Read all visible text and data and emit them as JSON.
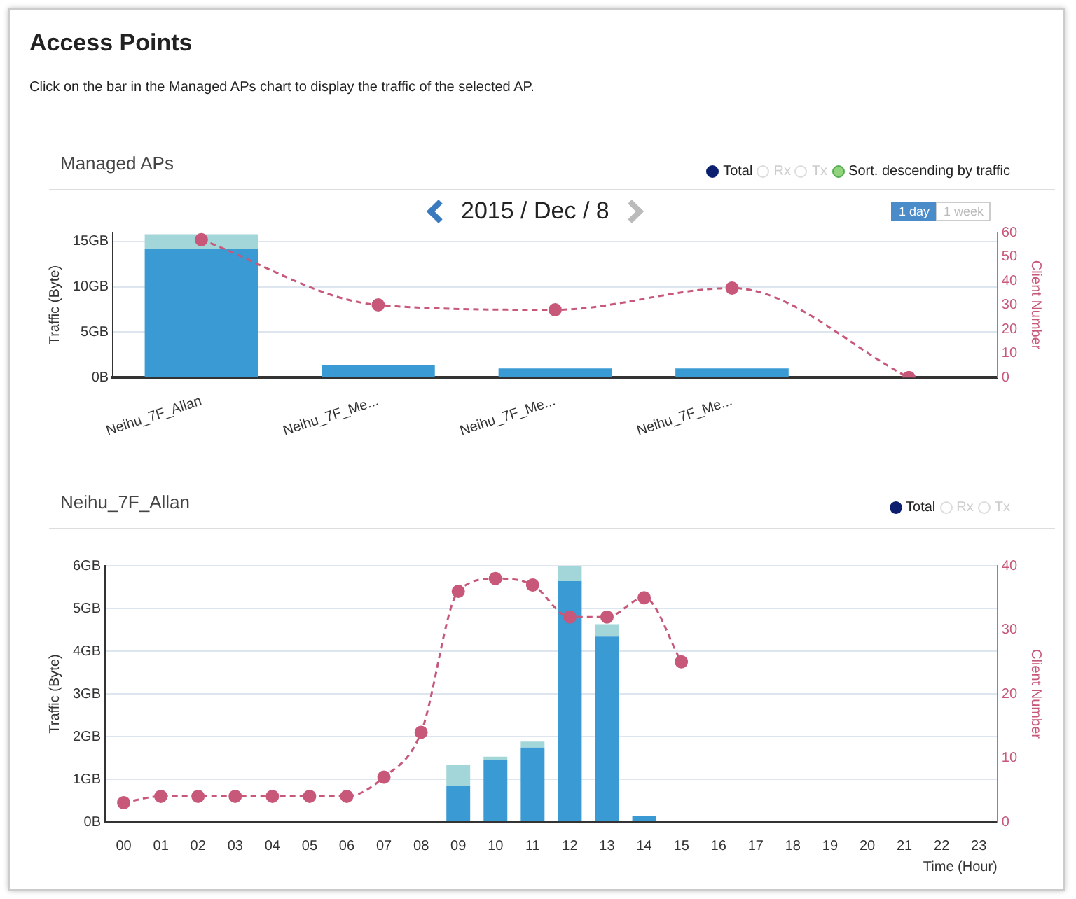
{
  "chart_data": [
    {
      "type": "bar",
      "title": "Managed APs",
      "ylabel": "Traffic (Byte)",
      "y2label": "Client Number",
      "annotations": [
        "Access Points",
        "Click on the bar in the Managed APs chart to display the traffic of the selected AP.",
        "2015 / Dec / 8",
        "1 day",
        "1 week",
        "Total",
        "Rx",
        "Tx",
        "Sort. descending by traffic"
      ],
      "categories": [
        "Neihu_7F_Allan",
        "Neihu_7F_Me...",
        "Neihu_7F_Me...",
        "Neihu_7F_Me...",
        null
      ],
      "stacked": true,
      "grid": "y",
      "legend": false,
      "marker": "circle",
      "line_style": "dashed",
      "ylim": [
        0,
        16
      ],
      "yticks": [
        {
          "value": 0,
          "label": "0B"
        },
        {
          "value": 5,
          "label": "5GB"
        },
        {
          "value": 10,
          "label": "10GB"
        },
        {
          "value": 15,
          "label": "15GB"
        }
      ],
      "y2lim": [
        0,
        60
      ],
      "y2ticks": [
        0,
        10,
        20,
        30,
        40,
        50,
        60
      ],
      "series": [
        {
          "color": "#3a9ad4",
          "values": [
            14.2,
            1.4,
            1.0,
            1.0,
            0
          ]
        },
        {
          "color": "#a3d6d8",
          "values": [
            1.6,
            0,
            0,
            0,
            0
          ]
        },
        {
          "type": "line",
          "axis": "y2",
          "color": "#c8587a",
          "values": [
            57,
            30,
            28,
            37,
            0
          ]
        }
      ]
    },
    {
      "type": "bar",
      "title": "Neihu_7F_Allan",
      "xlabel": "Time (Hour)",
      "ylabel": "Traffic (Byte)",
      "y2label": "Client Number",
      "annotations": [
        "Total",
        "Rx",
        "Tx"
      ],
      "categories": [
        "00",
        "01",
        "02",
        "03",
        "04",
        "05",
        "06",
        "07",
        "08",
        "09",
        "10",
        "11",
        "12",
        "13",
        "14",
        "15",
        "16",
        "17",
        "18",
        "19",
        "20",
        "21",
        "22",
        "23"
      ],
      "stacked": true,
      "grid": "y",
      "legend": false,
      "marker": "circle",
      "line_style": "dashed",
      "ylim": [
        0,
        6
      ],
      "yticks": [
        {
          "value": 0,
          "label": "0B"
        },
        {
          "value": 1,
          "label": "1GB"
        },
        {
          "value": 2,
          "label": "2GB"
        },
        {
          "value": 3,
          "label": "3GB"
        },
        {
          "value": 4,
          "label": "4GB"
        },
        {
          "value": 5,
          "label": "5GB"
        },
        {
          "value": 6,
          "label": "6GB"
        }
      ],
      "y2lim": [
        0,
        40
      ],
      "y2ticks": [
        0,
        10,
        20,
        30,
        40
      ],
      "series": [
        {
          "color": "#3a9ad4",
          "values": [
            0,
            0,
            0,
            0,
            0,
            0,
            0,
            0,
            0,
            0.85,
            1.46,
            1.74,
            5.64,
            4.34,
            0.14,
            0,
            0,
            0,
            0,
            0,
            0,
            0,
            0,
            0
          ]
        },
        {
          "color": "#a3d6d8",
          "values": [
            0,
            0,
            0,
            0,
            0,
            0,
            0,
            0,
            null,
            0.48,
            0.07,
            0.14,
            0.36,
            0.29,
            0,
            0.03,
            0,
            0,
            0,
            0,
            0,
            0,
            0,
            0
          ]
        },
        {
          "type": "line",
          "axis": "y2",
          "color": "#c8587a",
          "values": [
            3,
            4,
            4,
            4,
            4,
            4,
            4,
            7,
            14,
            36,
            38,
            37,
            32,
            32,
            35,
            25,
            null,
            null,
            null,
            null,
            null,
            null,
            null,
            null
          ]
        }
      ]
    }
  ]
}
